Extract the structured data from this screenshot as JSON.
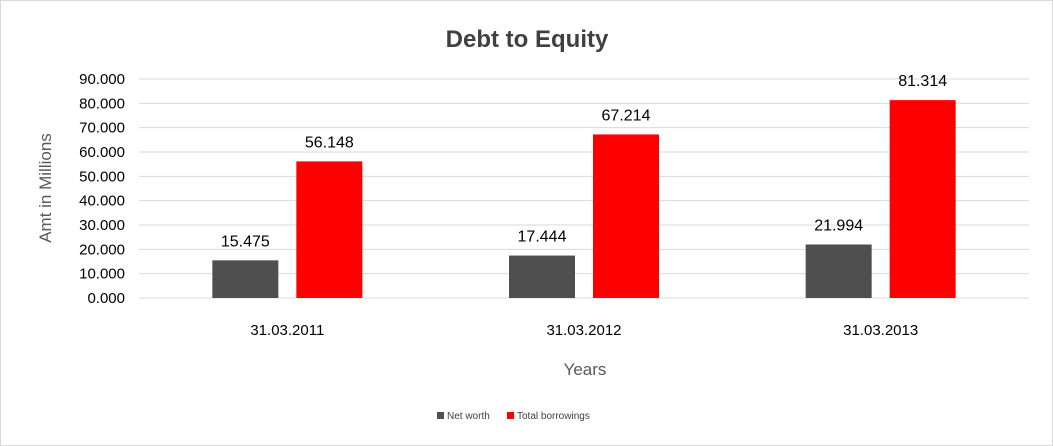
{
  "chart_data": {
    "type": "bar",
    "title": "Debt to Equity",
    "xlabel": "Years",
    "ylabel": "Amt in Millions",
    "categories": [
      "31.03.2011",
      "31.03.2012",
      "31.03.2013"
    ],
    "series": [
      {
        "name": "Net worth",
        "color": "#4f4f4f",
        "values": [
          15.475,
          17.444,
          21.994
        ],
        "labels": [
          "15.475",
          "17.444",
          "21.994"
        ]
      },
      {
        "name": "Total borrowings",
        "color": "#ff0000",
        "values": [
          56.148,
          67.214,
          81.314
        ],
        "labels": [
          "56.148",
          "67.214",
          "81.314"
        ]
      }
    ],
    "ylim": [
      0,
      90
    ],
    "yticks": [
      0,
      10,
      20,
      30,
      40,
      50,
      60,
      70,
      80,
      90
    ],
    "ytick_labels": [
      "0.000",
      "10.000",
      "20.000",
      "30.000",
      "40.000",
      "50.000",
      "60.000",
      "70.000",
      "80.000",
      "90.000"
    ],
    "grid": true,
    "gridline_color": "#d9d9d9",
    "legend_position": "bottom"
  }
}
